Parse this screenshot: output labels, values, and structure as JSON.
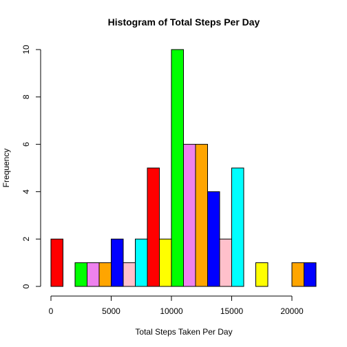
{
  "chart_data": {
    "type": "bar",
    "title": "Histogram of Total Steps Per Day",
    "xlabel": "Total Steps Taken Per Day",
    "ylabel": "Frequency",
    "xlim": [
      0,
      22000
    ],
    "ylim": [
      0,
      10
    ],
    "bin_width": 1000,
    "x_ticks": [
      0,
      5000,
      10000,
      15000,
      20000
    ],
    "x_tick_labels": [
      "0",
      "5000",
      "10000",
      "15000",
      "20000"
    ],
    "y_ticks": [
      0,
      2,
      4,
      6,
      8,
      10
    ],
    "y_tick_labels": [
      "0",
      "2",
      "4",
      "6",
      "8",
      "10"
    ],
    "bins": [
      {
        "start": 0,
        "end": 1000,
        "count": 2,
        "color": "#ff0000"
      },
      {
        "start": 1000,
        "end": 2000,
        "count": 0,
        "color": "#ffff00"
      },
      {
        "start": 2000,
        "end": 3000,
        "count": 1,
        "color": "#00ff00"
      },
      {
        "start": 3000,
        "end": 4000,
        "count": 1,
        "color": "#ee82ee"
      },
      {
        "start": 4000,
        "end": 5000,
        "count": 1,
        "color": "#ffa500"
      },
      {
        "start": 5000,
        "end": 6000,
        "count": 2,
        "color": "#0000ff"
      },
      {
        "start": 6000,
        "end": 7000,
        "count": 1,
        "color": "#ffc0cb"
      },
      {
        "start": 7000,
        "end": 8000,
        "count": 2,
        "color": "#00ffff"
      },
      {
        "start": 8000,
        "end": 9000,
        "count": 5,
        "color": "#ff0000"
      },
      {
        "start": 9000,
        "end": 10000,
        "count": 2,
        "color": "#ffff00"
      },
      {
        "start": 10000,
        "end": 11000,
        "count": 10,
        "color": "#00ff00"
      },
      {
        "start": 11000,
        "end": 12000,
        "count": 6,
        "color": "#ee82ee"
      },
      {
        "start": 12000,
        "end": 13000,
        "count": 6,
        "color": "#ffa500"
      },
      {
        "start": 13000,
        "end": 14000,
        "count": 4,
        "color": "#0000ff"
      },
      {
        "start": 14000,
        "end": 15000,
        "count": 2,
        "color": "#ffc0cb"
      },
      {
        "start": 15000,
        "end": 16000,
        "count": 5,
        "color": "#00ffff"
      },
      {
        "start": 16000,
        "end": 17000,
        "count": 0,
        "color": "#ff0000"
      },
      {
        "start": 17000,
        "end": 18000,
        "count": 1,
        "color": "#ffff00"
      },
      {
        "start": 18000,
        "end": 19000,
        "count": 0,
        "color": "#00ff00"
      },
      {
        "start": 19000,
        "end": 20000,
        "count": 0,
        "color": "#ee82ee"
      },
      {
        "start": 20000,
        "end": 21000,
        "count": 1,
        "color": "#ffa500"
      },
      {
        "start": 21000,
        "end": 22000,
        "count": 1,
        "color": "#0000ff"
      }
    ],
    "grid": false,
    "legend": "none"
  }
}
